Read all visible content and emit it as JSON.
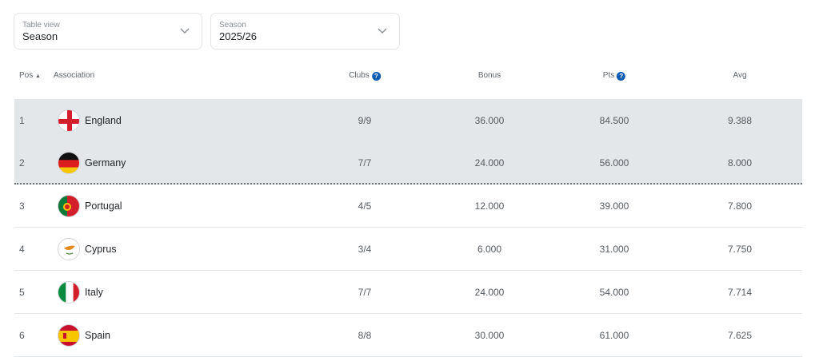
{
  "filters": [
    {
      "label": "Table view",
      "value": "Season"
    },
    {
      "label": "Season",
      "value": "2025/26"
    }
  ],
  "columns": {
    "pos": "Pos",
    "association": "Association",
    "clubs": "Clubs",
    "bonus": "Bonus",
    "pts": "Pts",
    "avg": "Avg"
  },
  "sort": {
    "column": "Pos",
    "direction": "ascending"
  },
  "rows": [
    {
      "pos": "1",
      "name": "England",
      "clubs": "9/9",
      "bonus": "36.000",
      "pts": "84.500",
      "avg": "9.388",
      "highlighted": true
    },
    {
      "pos": "2",
      "name": "Germany",
      "clubs": "7/7",
      "bonus": "24.000",
      "pts": "56.000",
      "avg": "8.000",
      "highlighted": true
    },
    {
      "pos": "3",
      "name": "Portugal",
      "clubs": "4/5",
      "bonus": "12.000",
      "pts": "39.000",
      "avg": "7.800",
      "highlighted": false
    },
    {
      "pos": "4",
      "name": "Cyprus",
      "clubs": "3/4",
      "bonus": "6.000",
      "pts": "31.000",
      "avg": "7.750",
      "highlighted": false
    },
    {
      "pos": "5",
      "name": "Italy",
      "clubs": "7/7",
      "bonus": "24.000",
      "pts": "54.000",
      "avg": "7.714",
      "highlighted": false
    },
    {
      "pos": "6",
      "name": "Spain",
      "clubs": "8/8",
      "bonus": "30.000",
      "pts": "61.000",
      "avg": "7.625",
      "highlighted": false
    }
  ],
  "colors": {
    "highlight": "#e3e7ea",
    "help_icon": "#0b5bb5"
  }
}
